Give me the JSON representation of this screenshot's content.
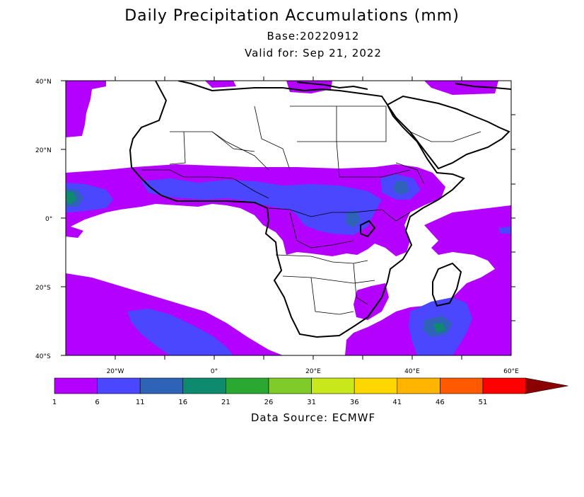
{
  "header": {
    "title": "Daily Precipitation Accumulations (mm)",
    "base": "Base:20220912",
    "valid": "Valid for: Sep 21, 2022"
  },
  "map": {
    "region": "Africa",
    "lat_range": [
      -40,
      40
    ],
    "lon_range": [
      -30,
      60
    ],
    "lat_labels": [
      "40°N",
      "20°N",
      "0°",
      "20°S",
      "40°S"
    ],
    "lon_labels": [
      "20°W",
      "0°",
      "20°E",
      "40°E",
      "60°E"
    ]
  },
  "colorbar": {
    "labels": [
      "1",
      "6",
      "11",
      "16",
      "21",
      "26",
      "31",
      "36",
      "41",
      "46",
      "51"
    ],
    "colors": [
      "#b400ff",
      "#4b46ff",
      "#2e63b8",
      "#0e8a6e",
      "#2aa832",
      "#7fcb2a",
      "#c9e81c",
      "#ffd700",
      "#ffb400",
      "#ff5a00",
      "#ff0000",
      "#8b0000"
    ]
  },
  "footer": {
    "source": "Data Source: ECMWF"
  }
}
